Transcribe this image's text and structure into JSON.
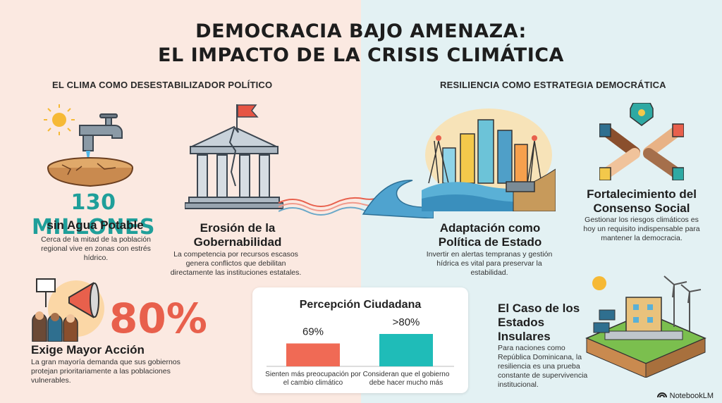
{
  "title": {
    "line1": "DEMOCRACIA BAJO AMENAZA:",
    "line2": "EL IMPACTO DE LA CRISIS CLIMÁTICA"
  },
  "left_section": {
    "heading": "EL CLIMA COMO DESESTABILIZADOR POLÍTICO",
    "water": {
      "stat": "130 MILLONES",
      "label": "sin Agua Potable",
      "desc": "Cerca de la mitad de la población regional vive en zonas con estrés hídrico."
    },
    "governance": {
      "heading": "Erosión de la Gobernabilidad",
      "desc": "La competencia por recursos escasos genera conflictos que debilitan directamente las instituciones estatales."
    },
    "action": {
      "stat": "80%",
      "heading": "Exige Mayor Acción",
      "desc": "La gran mayoría demanda que sus gobiernos protejan prioritariamente a las poblaciones vulnerables."
    }
  },
  "right_section": {
    "heading": "RESILIENCIA COMO ESTRATEGIA DEMOCRÁTICA",
    "adaptation": {
      "heading": "Adaptación como Política de Estado",
      "desc": "Invertir en alertas tempranas y gestión hídrica es vital para preservar la estabilidad."
    },
    "consensus": {
      "heading": "Fortalecimiento del Consenso Social",
      "desc": "Gestionar los riesgos climáticos es hoy un requisito indispensable para mantener la democracia."
    },
    "islands": {
      "heading": "El Caso de los Estados Insulares",
      "desc": "Para naciones como República Dominicana, la resiliencia es una prueba constante de supervivencia institucional."
    }
  },
  "chart_data": {
    "type": "bar",
    "title": "Percepción Ciudadana",
    "categories": [
      "Sienten más preocupación por el cambio climático",
      "Consideran que el gobierno debe hacer mucho más"
    ],
    "values": [
      69,
      80
    ],
    "labels": [
      "69%",
      ">80%"
    ],
    "colors": [
      "#f06a55",
      "#1fbcb8"
    ]
  },
  "brand": "NotebookLM",
  "colors": {
    "teal": "#1f9f9a",
    "coral": "#e8604c",
    "left_bg": "#fbe9e1",
    "right_bg": "#e3f1f3"
  }
}
